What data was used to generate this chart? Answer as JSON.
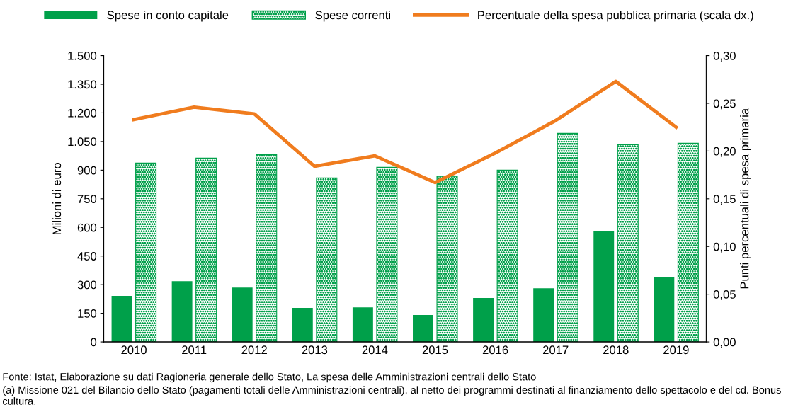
{
  "chart_data": {
    "type": "bar",
    "ylabel": "Milioni di euro",
    "y2label": "Punti percentuali di spesa primaria",
    "categories": [
      "2010",
      "2011",
      "2012",
      "2013",
      "2014",
      "2015",
      "2016",
      "2017",
      "2018",
      "2019"
    ],
    "series": [
      {
        "name": "Spese in conto capitale",
        "color": "#00a04a",
        "values": [
          241,
          318,
          285,
          178,
          181,
          141,
          230,
          281,
          581,
          341
        ]
      },
      {
        "name": "Spese correnti",
        "color": "#00a04a",
        "values": [
          937,
          963,
          981,
          859,
          915,
          867,
          900,
          1093,
          1033,
          1041
        ]
      },
      {
        "name": "Percentuale della spesa pubblica primaria (scala dx.)",
        "color": "#f07c1e",
        "type": "line",
        "axis": "y2",
        "values": [
          0.233,
          0.246,
          0.239,
          0.184,
          0.195,
          0.167,
          0.198,
          0.232,
          0.273,
          0.225
        ]
      }
    ],
    "ylim": [
      0,
      1500
    ],
    "yticks": [
      0,
      150,
      300,
      450,
      600,
      750,
      900,
      {
        "value": 1050,
        "label": "1.050"
      },
      {
        "value": 1200,
        "label": "1.200"
      },
      {
        "value": 1350,
        "label": "1.350"
      },
      {
        "value": 1500,
        "label": "1.500"
      }
    ],
    "y2lim": [
      0,
      0.3
    ],
    "y2ticks": [
      {
        "value": 0,
        "label": "0,00"
      },
      {
        "value": 0.05,
        "label": "0,05"
      },
      {
        "value": 0.1,
        "label": "0,10"
      },
      {
        "value": 0.15,
        "label": "0,15"
      },
      {
        "value": 0.2,
        "label": "0,20"
      },
      {
        "value": 0.25,
        "label": "0,25"
      },
      {
        "value": 0.3,
        "label": "0,30"
      }
    ],
    "grid": false,
    "legend": "top",
    "marker": "none",
    "line_style": "solid",
    "annotations": [
      "Fonte: Istat, Elaborazione su dati Ragioneria generale dello Stato, La spesa delle Amministrazioni centrali dello Stato",
      "(a) Missione 021 del Bilancio dello Stato (pagamenti totali delle Amministrazioni centrali), al netto dei programmi destinati al finanziamento dello spettacolo e del cd. Bonus cultura."
    ]
  }
}
